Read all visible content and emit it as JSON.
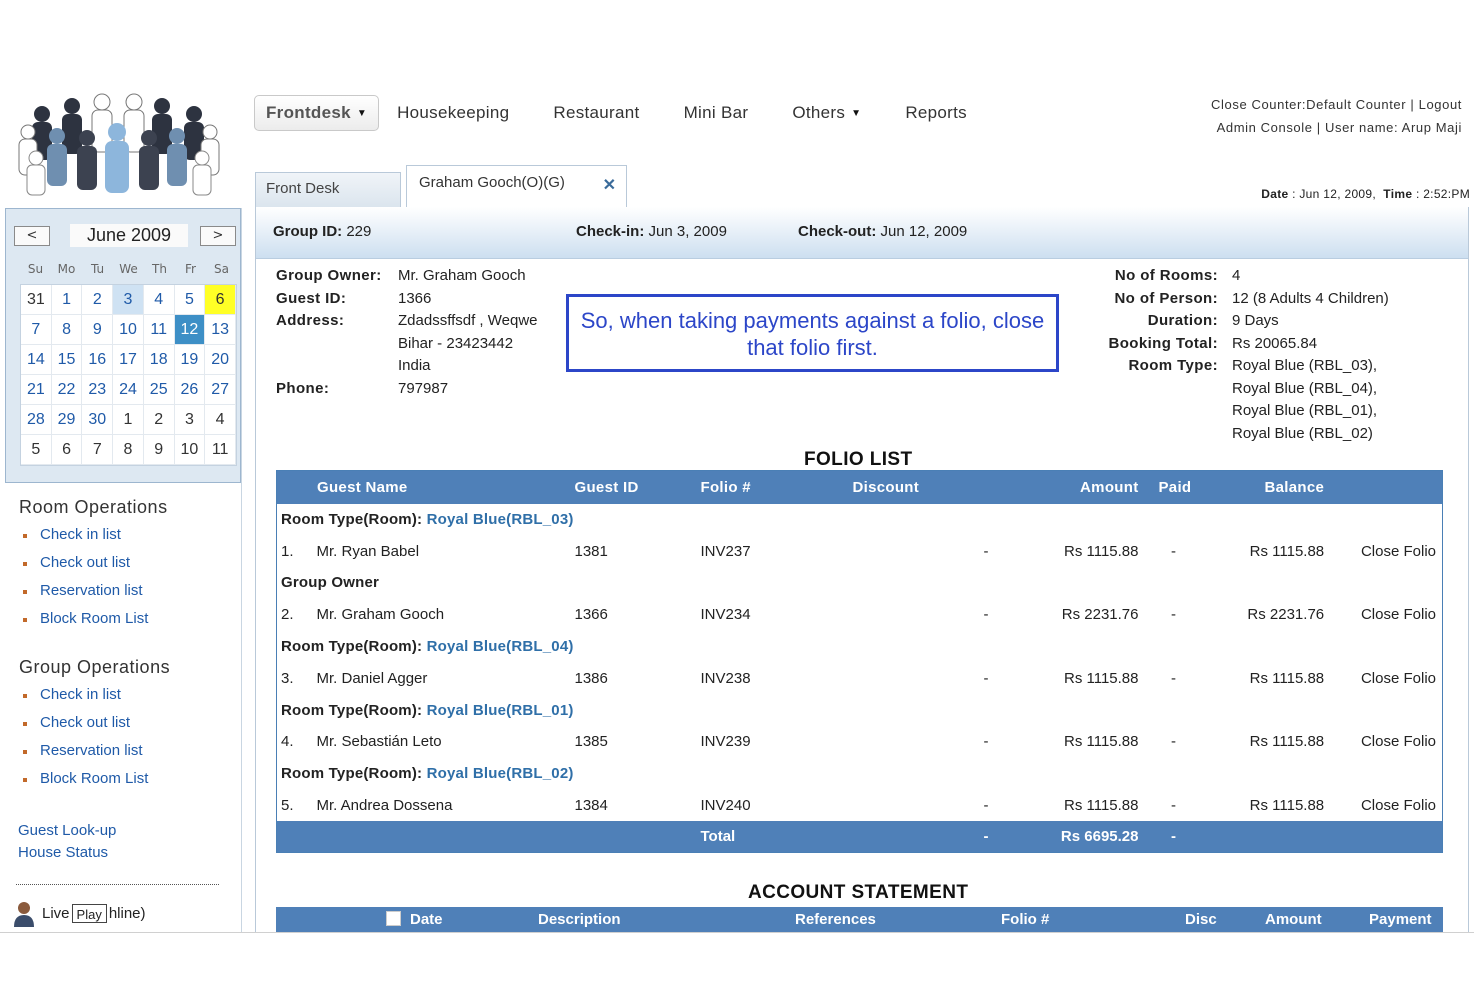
{
  "nav": {
    "items": [
      {
        "label": "Frontdesk",
        "active": true,
        "dropdown": true
      },
      {
        "label": "Housekeeping"
      },
      {
        "label": "Restaurant"
      },
      {
        "label": "Mini Bar"
      },
      {
        "label": "Others",
        "dropdown": true
      },
      {
        "label": "Reports"
      }
    ]
  },
  "toplinks": {
    "close_counter": "Close Counter:Default Counter",
    "logout": "Logout",
    "admin_console": "Admin Console",
    "user_name": "User name: Arup Maji",
    "sep": "|"
  },
  "datetime": {
    "date_label": "Date",
    "date_value": ": Jun 12, 2009,",
    "time_label": "Time",
    "time_value": ": 2:52:PM"
  },
  "tabs": {
    "front_desk": "Front Desk",
    "guest": "Graham Gooch(O)(G)",
    "close_glyph": "✕"
  },
  "calendar": {
    "title": "June 2009",
    "prev": "<",
    "next": ">",
    "dow": [
      "Su",
      "Mo",
      "Tu",
      "We",
      "Th",
      "Fr",
      "Sa"
    ],
    "days": [
      {
        "d": "31",
        "t": "other"
      },
      {
        "d": "1"
      },
      {
        "d": "2"
      },
      {
        "d": "3",
        "t": "hl"
      },
      {
        "d": "4"
      },
      {
        "d": "5"
      },
      {
        "d": "6",
        "t": "sat"
      },
      {
        "d": "7"
      },
      {
        "d": "8"
      },
      {
        "d": "9"
      },
      {
        "d": "10"
      },
      {
        "d": "11"
      },
      {
        "d": "12",
        "t": "sel"
      },
      {
        "d": "13"
      },
      {
        "d": "14"
      },
      {
        "d": "15"
      },
      {
        "d": "16"
      },
      {
        "d": "17"
      },
      {
        "d": "18"
      },
      {
        "d": "19"
      },
      {
        "d": "20"
      },
      {
        "d": "21"
      },
      {
        "d": "22"
      },
      {
        "d": "23"
      },
      {
        "d": "24"
      },
      {
        "d": "25"
      },
      {
        "d": "26"
      },
      {
        "d": "27"
      },
      {
        "d": "28"
      },
      {
        "d": "29"
      },
      {
        "d": "30"
      },
      {
        "d": "1",
        "t": "other"
      },
      {
        "d": "2",
        "t": "other"
      },
      {
        "d": "3",
        "t": "other"
      },
      {
        "d": "4",
        "t": "other"
      },
      {
        "d": "5",
        "t": "other"
      },
      {
        "d": "6",
        "t": "other"
      },
      {
        "d": "7",
        "t": "other"
      },
      {
        "d": "8",
        "t": "other"
      },
      {
        "d": "9",
        "t": "other"
      },
      {
        "d": "10",
        "t": "other"
      },
      {
        "d": "11",
        "t": "other"
      }
    ]
  },
  "sidebar": {
    "room_ops": {
      "heading": "Room Operations",
      "items": [
        "Check in list",
        "Check out list",
        "Reservation list",
        "Block Room List"
      ]
    },
    "group_ops": {
      "heading": "Group Operations",
      "items": [
        "Check in list",
        "Check out list",
        "Reservation list",
        "Block Room List"
      ]
    },
    "guest_lookup": "Guest Look-up",
    "house_status": "House Status",
    "live_prefix": "Live",
    "play": "Play",
    "live_suffix": "hline)"
  },
  "group_bar": {
    "group_id_label": "Group ID:",
    "group_id": "229",
    "checkin_label": "Check-in:",
    "checkin": "Jun 3, 2009",
    "checkout_label": "Check-out:",
    "checkout": "Jun 12, 2009"
  },
  "guest_info": {
    "owner_label": "Group Owner:",
    "owner": "Mr. Graham Gooch",
    "guest_id_label": "Guest ID:",
    "guest_id": "1366",
    "address_label": "Address:",
    "address_lines": [
      "Zdadssffsdf , Weqwe",
      "Bihar - 23423442",
      "India"
    ],
    "phone_label": "Phone:",
    "phone": "797987"
  },
  "booking_info": {
    "rooms_label": "No of Rooms:",
    "rooms": "4",
    "persons_label": "No of Person:",
    "persons": "12 (8 Adults 4 Children)",
    "duration_label": "Duration:",
    "duration": "9 Days",
    "total_label": "Booking Total:",
    "total": "Rs 20065.84",
    "room_type_label": "Room Type:",
    "room_types": [
      "Royal Blue (RBL_03),",
      "Royal Blue (RBL_04),",
      "Royal Blue (RBL_01),",
      "Royal Blue (RBL_02)"
    ]
  },
  "callout": {
    "text": "So, when taking payments against a folio, close that folio first."
  },
  "folio_list": {
    "title": "FOLIO LIST",
    "columns": [
      "Guest Name",
      "Guest ID",
      "Folio #",
      "Discount",
      "Amount",
      "Paid",
      "Balance"
    ],
    "rows": [
      {
        "type": "group",
        "label": "Room Type(Room):",
        "link": "Royal Blue(RBL_03)"
      },
      {
        "type": "item",
        "num": "1.",
        "name": "Mr. Ryan Babel",
        "id": "1381",
        "folio": "INV237",
        "discount": "-",
        "amount": "Rs 1115.88",
        "paid": "-",
        "balance": "Rs 1115.88",
        "action": "Close Folio"
      },
      {
        "type": "group",
        "label": "Group Owner",
        "link": ""
      },
      {
        "type": "item",
        "num": "2.",
        "name": "Mr. Graham Gooch",
        "id": "1366",
        "folio": "INV234",
        "discount": "-",
        "amount": "Rs 2231.76",
        "paid": "-",
        "balance": "Rs 2231.76",
        "action": "Close Folio"
      },
      {
        "type": "group",
        "label": "Room Type(Room):",
        "link": "Royal Blue(RBL_04)"
      },
      {
        "type": "item",
        "num": "3.",
        "name": "Mr. Daniel Agger",
        "id": "1386",
        "folio": "INV238",
        "discount": "-",
        "amount": "Rs 1115.88",
        "paid": "-",
        "balance": "Rs 1115.88",
        "action": "Close Folio"
      },
      {
        "type": "group",
        "label": "Room Type(Room):",
        "link": "Royal Blue(RBL_01)"
      },
      {
        "type": "item",
        "num": "4.",
        "name": "Mr. Sebastián Leto",
        "id": "1385",
        "folio": "INV239",
        "discount": "-",
        "amount": "Rs 1115.88",
        "paid": "-",
        "balance": "Rs 1115.88",
        "action": "Close Folio"
      },
      {
        "type": "group",
        "label": "Room Type(Room):",
        "link": "Royal Blue(RBL_02)"
      },
      {
        "type": "item",
        "num": "5.",
        "name": "Mr. Andrea Dossena",
        "id": "1384",
        "folio": "INV240",
        "discount": "-",
        "amount": "Rs 1115.88",
        "paid": "-",
        "balance": "Rs 1115.88",
        "action": "Close Folio"
      }
    ],
    "total": {
      "label": "Total",
      "discount": "-",
      "amount": "Rs 6695.28",
      "paid": "-"
    }
  },
  "account_statement": {
    "title": "ACCOUNT STATEMENT",
    "columns": [
      "Date",
      "Description",
      "References",
      "Folio #",
      "Disc",
      "Amount",
      "Payment"
    ]
  },
  "colors": {
    "header_blue": "#4f80b8",
    "link_blue": "#1f5aa8",
    "callout_blue": "#2c46c8",
    "selected_day": "#3d8fc6",
    "today_highlight": "#ffff26"
  }
}
